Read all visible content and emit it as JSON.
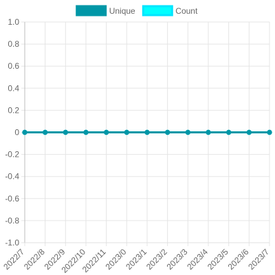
{
  "chart_data": {
    "type": "line",
    "categories": [
      "2022/7",
      "2022/8",
      "2022/9",
      "2022/10",
      "2022/11",
      "2023/0",
      "2023/1",
      "2023/2",
      "2023/3",
      "2023/4",
      "2023/5",
      "2023/6",
      "2023/7"
    ],
    "series": [
      {
        "name": "Unique",
        "values": [
          0,
          0,
          0,
          0,
          0,
          0,
          0,
          0,
          0,
          0,
          0,
          0,
          0
        ],
        "color": "#0097a7",
        "fill": "#0097a7"
      },
      {
        "name": "Count",
        "values": [
          0,
          0,
          0,
          0,
          0,
          0,
          0,
          0,
          0,
          0,
          0,
          0,
          0
        ],
        "color": "#00e5ff",
        "fill": "#00ffff"
      }
    ],
    "ylim": [
      -1.0,
      1.0
    ],
    "yticks": [
      "1.0",
      "0.8",
      "0.6",
      "0.4",
      "0.2",
      "0",
      "-0.2",
      "-0.4",
      "-0.6",
      "-0.8",
      "-1.0"
    ],
    "grid": true,
    "legend_position": "top-center",
    "title": "",
    "xlabel": "",
    "ylabel": ""
  }
}
